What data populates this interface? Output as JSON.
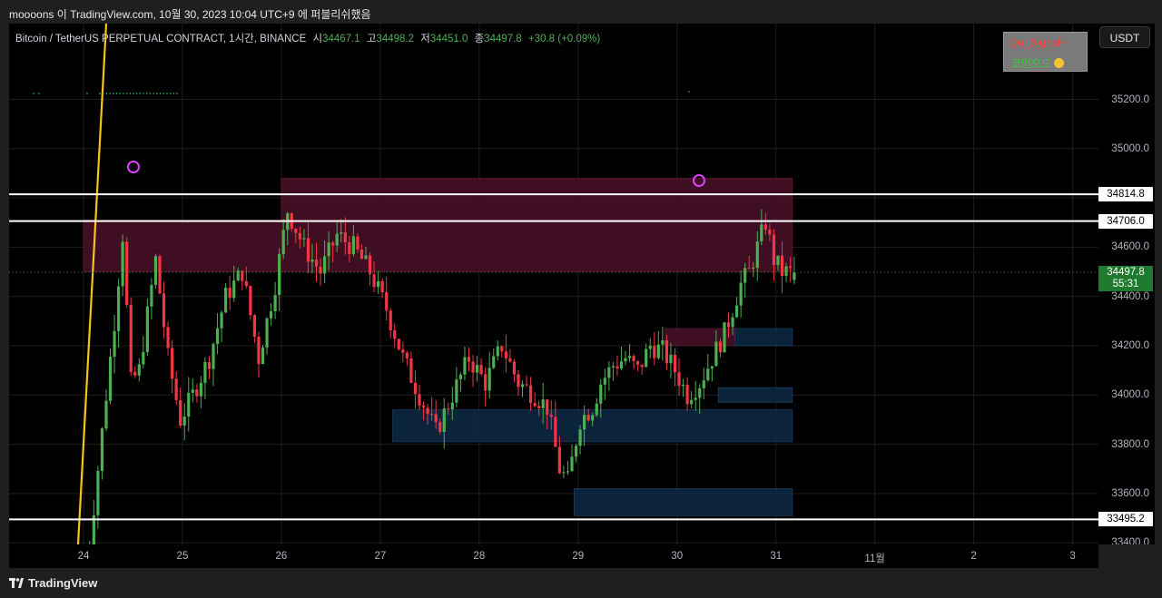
{
  "header": {
    "title": "moooons 이 TradingView.com, 10월 30, 2023 10:04 UTC+9 에 퍼블리쉬했음"
  },
  "legend": {
    "symbol": "Bitcoin / TetherUS PERPETUAL CONTRACT, 1시간, BINANCE",
    "o_label": "시",
    "o_value": "34467.1",
    "h_label": "고",
    "h_value": "34498.2",
    "l_label": "저",
    "l_value": "34451.0",
    "c_label": "종",
    "c_value": "34497.8",
    "change": "+30.8 (+0.09%)"
  },
  "currency_button": "USDT",
  "signal_box": {
    "line1": "Qu_Signal+",
    "line2": "코인모드"
  },
  "price_axis": {
    "ticks": [
      "35200.0",
      "35000.0",
      "34600.0",
      "34400.0",
      "34200.0",
      "34000.0",
      "33800.0",
      "33600.0",
      "33400.0"
    ],
    "levels": [
      "34814.8",
      "34706.0",
      "33495.2"
    ],
    "current_price": "34497.8",
    "countdown": "55:31"
  },
  "time_axis": {
    "labels": [
      "24",
      "25",
      "26",
      "27",
      "28",
      "29",
      "30",
      "31",
      "11월",
      "2",
      "3"
    ]
  },
  "footer": {
    "brand": "TradingView"
  },
  "colors": {
    "up": "#4caf50",
    "down": "#f23645",
    "resistance_zone": "#4a1128",
    "support_zone": "#0e2a45",
    "trendline": "#f5c518",
    "marker": "#e040fb"
  },
  "chart_data": {
    "type": "candlestick",
    "symbol": "BTCUSDT.P",
    "interval": "1h",
    "y_range": [
      33200,
      35250
    ],
    "horizontal_levels": [
      34814.8,
      34706.0,
      33495.2
    ],
    "current_price": 34497.8,
    "ohlc_last": {
      "open": 34467.1,
      "high": 34498.2,
      "low": 34451.0,
      "close": 34497.8
    },
    "path_hours_vs_price": [
      [
        0,
        33100
      ],
      [
        4,
        33700
      ],
      [
        8,
        34300
      ],
      [
        10,
        34650
      ],
      [
        12,
        34050
      ],
      [
        14,
        34100
      ],
      [
        18,
        34550
      ],
      [
        21,
        34150
      ],
      [
        24,
        33900
      ],
      [
        27,
        34000
      ],
      [
        31,
        34150
      ],
      [
        35,
        34400
      ],
      [
        39,
        34500
      ],
      [
        43,
        34150
      ],
      [
        47,
        34450
      ],
      [
        50,
        34750
      ],
      [
        54,
        34600
      ],
      [
        58,
        34500
      ],
      [
        62,
        34650
      ],
      [
        66,
        34600
      ],
      [
        70,
        34500
      ],
      [
        74,
        34350
      ],
      [
        78,
        34150
      ],
      [
        82,
        34000
      ],
      [
        86,
        33850
      ],
      [
        90,
        34000
      ],
      [
        94,
        34150
      ],
      [
        98,
        34050
      ],
      [
        102,
        34200
      ],
      [
        106,
        34050
      ],
      [
        110,
        34000
      ],
      [
        113,
        33950
      ],
      [
        116,
        33700
      ],
      [
        118,
        33650
      ],
      [
        121,
        33900
      ],
      [
        124,
        33950
      ],
      [
        126,
        34050
      ],
      [
        129,
        34120
      ],
      [
        132,
        34150
      ],
      [
        135,
        34100
      ],
      [
        138,
        34200
      ],
      [
        141,
        34180
      ],
      [
        144,
        34100
      ],
      [
        147,
        34000
      ],
      [
        150,
        34050
      ],
      [
        153,
        34150
      ],
      [
        156,
        34250
      ],
      [
        158,
        34350
      ],
      [
        160,
        34450
      ],
      [
        162,
        34500
      ],
      [
        164,
        34600
      ],
      [
        166,
        34700
      ],
      [
        168,
        34550
      ],
      [
        170,
        34500
      ],
      [
        172,
        34497.8
      ]
    ],
    "zones": [
      {
        "kind": "resistance",
        "low": 34700,
        "high": 34880,
        "from_hour": 48,
        "to_hour": 172
      },
      {
        "kind": "resistance",
        "low": 34500,
        "high": 34710,
        "from_hour": 0,
        "to_hour": 172
      },
      {
        "kind": "resistance",
        "low": 34200,
        "high": 34270,
        "from_hour": 141,
        "to_hour": 158
      },
      {
        "kind": "support",
        "low": 34200,
        "high": 34270,
        "from_hour": 158,
        "to_hour": 172
      },
      {
        "kind": "support",
        "low": 33970,
        "high": 34030,
        "from_hour": 154,
        "to_hour": 172
      },
      {
        "kind": "support",
        "low": 33810,
        "high": 33940,
        "from_hour": 75,
        "to_hour": 172
      },
      {
        "kind": "support",
        "low": 33510,
        "high": 33620,
        "from_hour": 119,
        "to_hour": 172
      }
    ]
  }
}
